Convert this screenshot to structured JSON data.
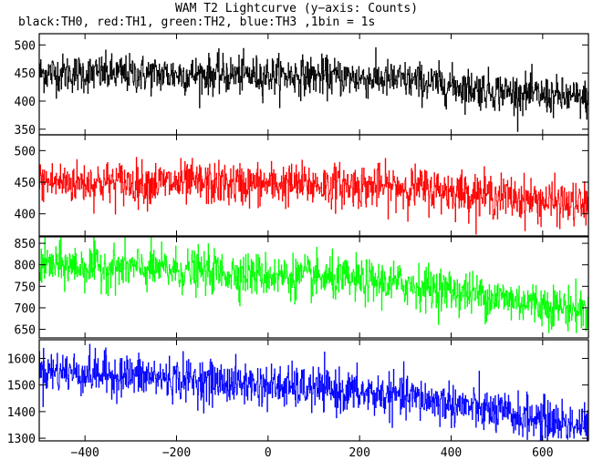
{
  "title": "WAM T2 Lightcurve (y−axis: Counts)",
  "subtitle": "black:TH0, red:TH1, green:TH2, blue:TH3 ,1bin = 1s",
  "chart_data": {
    "type": "line",
    "xlim": [
      -500,
      700
    ],
    "x_ticks": [
      -400,
      -200,
      0,
      200,
      400,
      600
    ],
    "x_tick_labels": [
      "−400",
      "−200",
      "0",
      "200",
      "400",
      "600"
    ],
    "bin_size_s": 1,
    "panels": [
      {
        "series": "TH0",
        "color": "#000000",
        "ylim": [
          340,
          520
        ],
        "y_ticks": [
          350,
          400,
          450,
          500
        ],
        "y_tick_labels": [
          "350",
          "400",
          "450",
          "500"
        ],
        "trend_x": [
          -500,
          -300,
          -100,
          100,
          300,
          400,
          500,
          600,
          700
        ],
        "trend_y": [
          450,
          448,
          447,
          445,
          437,
          428,
          418,
          410,
          403
        ],
        "noise_sd": 17
      },
      {
        "series": "TH1",
        "color": "#ff0000",
        "ylim": [
          365,
          525
        ],
        "y_ticks": [
          400,
          450,
          500
        ],
        "y_tick_labels": [
          "400",
          "450",
          "500"
        ],
        "trend_x": [
          -500,
          -300,
          -100,
          100,
          300,
          400,
          500,
          600,
          700
        ],
        "trend_y": [
          450,
          449,
          447,
          446,
          442,
          436,
          428,
          420,
          412
        ],
        "noise_sd": 17
      },
      {
        "series": "TH2",
        "color": "#00ff00",
        "ylim": [
          630,
          865
        ],
        "y_ticks": [
          650,
          700,
          750,
          800,
          850
        ],
        "y_tick_labels": [
          "650",
          "700",
          "750",
          "800",
          "850"
        ],
        "trend_x": [
          -500,
          -300,
          -100,
          100,
          300,
          400,
          500,
          600,
          700
        ],
        "trend_y": [
          800,
          792,
          782,
          770,
          755,
          740,
          724,
          708,
          692
        ],
        "noise_sd": 25
      },
      {
        "series": "TH3",
        "color": "#0000ff",
        "ylim": [
          1290,
          1670
        ],
        "y_ticks": [
          1300,
          1400,
          1500,
          1600
        ],
        "y_tick_labels": [
          "1300",
          "1400",
          "1500",
          "1600"
        ],
        "trend_x": [
          -500,
          -300,
          -100,
          100,
          300,
          400,
          500,
          600,
          700
        ],
        "trend_y": [
          1555,
          1535,
          1510,
          1485,
          1455,
          1430,
          1395,
          1370,
          1345
        ],
        "noise_sd": 40
      }
    ]
  }
}
